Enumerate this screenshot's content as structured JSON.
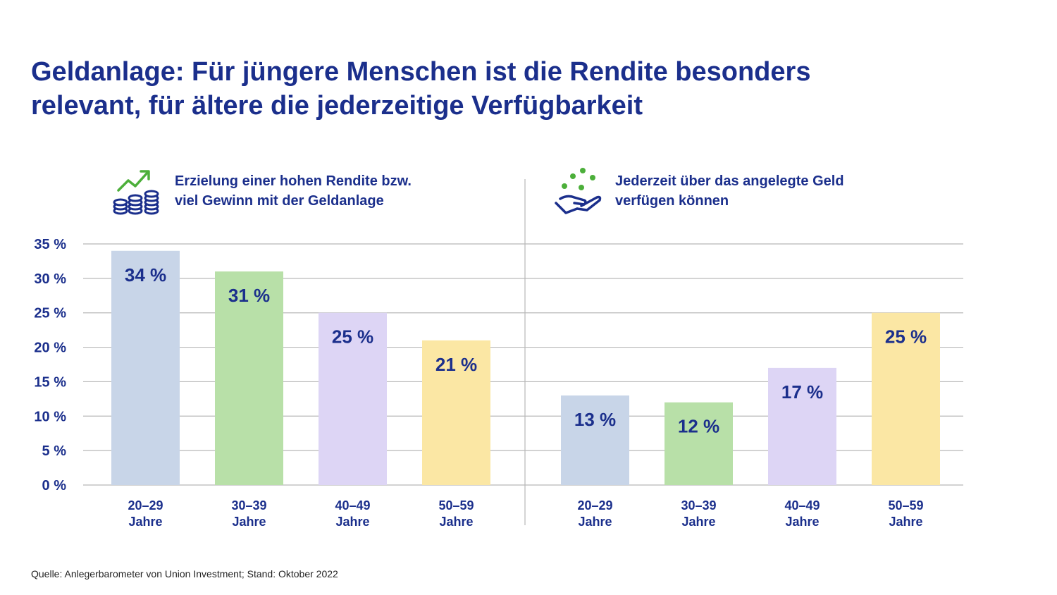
{
  "title": {
    "line1": "Geldanlage: Für jüngere Menschen ist die Rendite besonders",
    "line2": "relevant, für ältere die jederzeitige Verfügbarkeit"
  },
  "legend": {
    "left": {
      "line1": "Erzielung einer hohen Rendite bzw.",
      "line2": "viel Gewinn mit der Geldanlage",
      "icon": "coins-growth-icon"
    },
    "right": {
      "line1": "Jederzeit über das angelegte Geld",
      "line2": "verfügen können",
      "icon": "hand-money-icon"
    }
  },
  "source": "Quelle: Anlegerbarometer von Union Investment; Stand: Oktober 2022",
  "colors": {
    "text": "#1b2f8c",
    "grid": "#b8b8b8",
    "bar_blue": "#c8d5e8",
    "bar_green": "#b8e0a8",
    "bar_purple": "#ddd5f5",
    "bar_yellow": "#fbe7a4",
    "icon_green": "#4caf3a"
  },
  "chart_data": {
    "type": "bar",
    "ylim": [
      0,
      35
    ],
    "yticks": [
      "0 %",
      "5 %",
      "10 %",
      "15 %",
      "20 %",
      "25 %",
      "30 %",
      "35 %"
    ],
    "grid": true,
    "categories": [
      [
        "20–29",
        "Jahre"
      ],
      [
        "30–39",
        "Jahre"
      ],
      [
        "40–49",
        "Jahre"
      ],
      [
        "50–59",
        "Jahre"
      ]
    ],
    "panels": [
      {
        "name": "Erzielung einer hohen Rendite bzw. viel Gewinn mit der Geldanlage",
        "values": [
          34,
          31,
          25,
          21
        ],
        "labels": [
          "34 %",
          "31 %",
          "25 %",
          "21 %"
        ]
      },
      {
        "name": "Jederzeit über das angelegte Geld verfügen können",
        "values": [
          13,
          12,
          17,
          25
        ],
        "labels": [
          "13 %",
          "12 %",
          "17 %",
          "25 %"
        ]
      }
    ]
  }
}
